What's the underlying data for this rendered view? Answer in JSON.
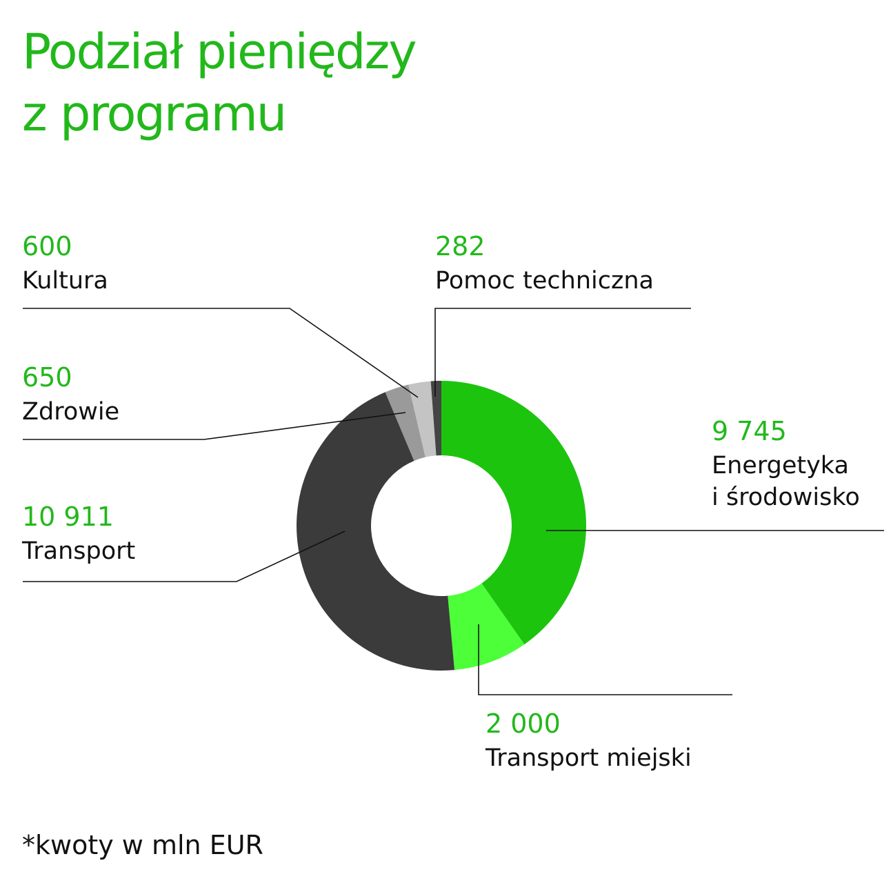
{
  "title_line1": "Podział pieniędzy",
  "title_line2": "z programu",
  "footnote": "*kwoty w mln EUR",
  "chart_data": {
    "type": "pie",
    "donut": true,
    "order": "clockwise from top",
    "slices": [
      {
        "label": "Energetyka i środowisko",
        "value_text": "9 745",
        "value": 9745,
        "color": "#1cc40e"
      },
      {
        "label": "Transport miejski",
        "value_text": "2 000",
        "value": 2000,
        "color": "#4dff38"
      },
      {
        "label": "Transport",
        "value_text": "10 911",
        "value": 10911,
        "color": "#3b3b3b"
      },
      {
        "label": "Zdrowie",
        "value_text": "650",
        "value": 650,
        "color": "#9a9a9a"
      },
      {
        "label": "Kultura",
        "value_text": "600",
        "value": 600,
        "color": "#c4c4c4"
      },
      {
        "label": "Pomoc techniczna",
        "value_text": "282",
        "value": 282,
        "color": "#444444"
      }
    ],
    "labels": {
      "energetyka": {
        "value": "9 745",
        "line1": "Energetyka",
        "line2": "i środowisko"
      },
      "transport_miejski": {
        "value": "2 000",
        "name": "Transport miejski"
      },
      "transport": {
        "value": "10 911",
        "name": "Transport"
      },
      "zdrowie": {
        "value": "650",
        "name": "Zdrowie"
      },
      "kultura": {
        "value": "600",
        "name": "Kultura"
      },
      "pomoc": {
        "value": "282",
        "name": "Pomoc techniczna"
      }
    }
  }
}
